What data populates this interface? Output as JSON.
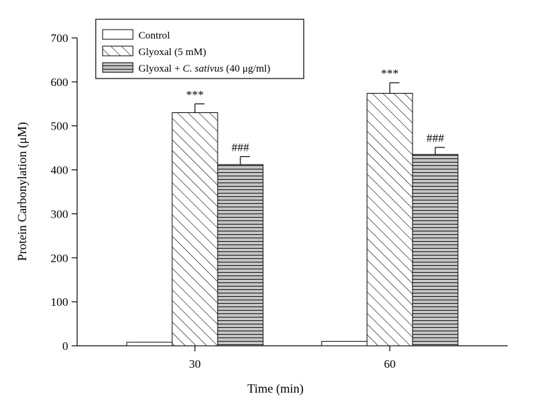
{
  "chart_data": {
    "type": "bar",
    "title": "",
    "xlabel": "Time (min)",
    "ylabel": "Protein Carbonylation (μM)",
    "categories": [
      "30",
      "60"
    ],
    "ylim": [
      0,
      700
    ],
    "yticks": [
      0,
      100,
      200,
      300,
      400,
      500,
      600,
      700
    ],
    "grid": false,
    "legend_position": "top-left",
    "series": [
      {
        "name": "Control",
        "pattern": "solid-white",
        "values": [
          8,
          10
        ],
        "errors": [
          0,
          0
        ],
        "annotations": [
          "",
          ""
        ]
      },
      {
        "name": "Glyoxal (5 mM)",
        "pattern": "diagonal-hatch",
        "values": [
          530,
          574
        ],
        "errors": [
          20,
          24
        ],
        "annotations": [
          "***",
          "***"
        ]
      },
      {
        "name_parts": [
          "Glyoxal + ",
          "C. sativus",
          " (40 μg/ml)"
        ],
        "name": "Glyoxal + C. sativus (40 μg/ml)",
        "pattern": "horizontal-hatch-gray",
        "values": [
          412,
          435
        ],
        "errors": [
          18,
          16
        ],
        "annotations": [
          "###",
          "###"
        ]
      }
    ]
  },
  "colors": {
    "axis": "#000000",
    "control_fill": "#ffffff",
    "gray_fill": "#c4c4c4",
    "hatch_line": "#000000"
  }
}
